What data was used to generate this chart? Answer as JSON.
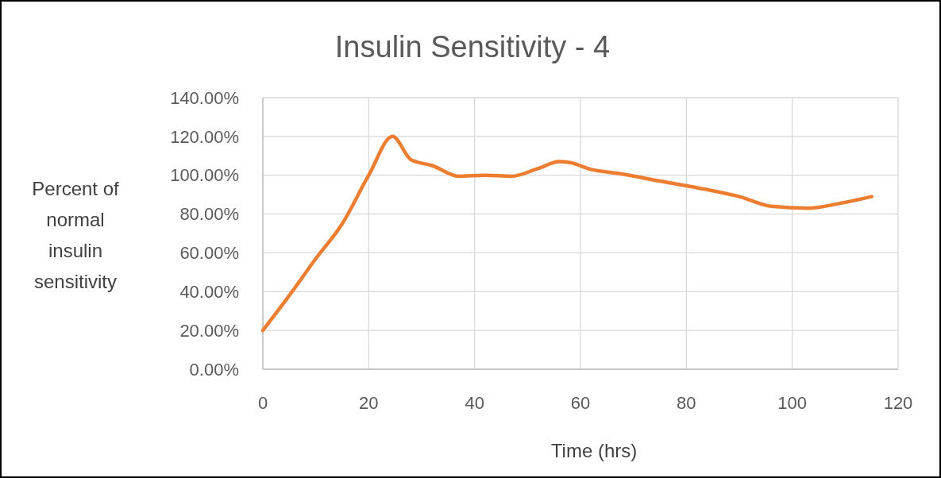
{
  "chart_data": {
    "type": "line",
    "title": "Insulin Sensitivity - 4",
    "xlabel": "Time (hrs)",
    "ylabel": "Percent of\nnormal\ninsulin\nsensitivity",
    "x": [
      0,
      5,
      10,
      15,
      20,
      24.5,
      28,
      32,
      37,
      42,
      47,
      52,
      56,
      58,
      62,
      67,
      75,
      85,
      90,
      96,
      103,
      109,
      115
    ],
    "series": [
      {
        "color": "#ed7d31",
        "values": [
          20,
          38,
          57,
          75,
          100,
          120,
          108,
          105,
          99.5,
          100,
          99.5,
          103.5,
          107,
          106.5,
          103,
          101,
          97,
          92,
          89,
          84,
          83,
          85.5,
          89
        ]
      }
    ],
    "xlim": [
      0,
      120
    ],
    "xticks": [
      0,
      20,
      40,
      60,
      80,
      100,
      120
    ],
    "ylim": [
      0,
      140
    ],
    "yticks": [
      {
        "value": 0,
        "label": "0.00%"
      },
      {
        "value": 20,
        "label": "20.00%"
      },
      {
        "value": 40,
        "label": "40.00%"
      },
      {
        "value": 60,
        "label": "60.00%"
      },
      {
        "value": 80,
        "label": "80.00%"
      },
      {
        "value": 100,
        "label": "100.00%"
      },
      {
        "value": 120,
        "label": "120.00%"
      },
      {
        "value": 140,
        "label": "140.00%"
      }
    ],
    "grid": true,
    "marker": "none",
    "line_style": "solid"
  }
}
